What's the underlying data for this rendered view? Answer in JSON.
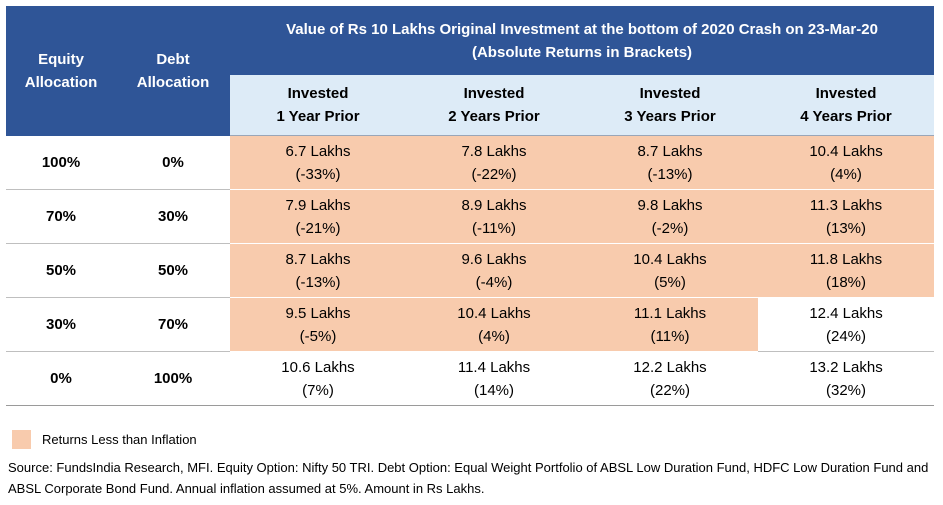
{
  "header": {
    "equity_allocation": "Equity Allocation",
    "debt_allocation": "Debt Allocation",
    "title_line1": "Value of Rs 10 Lakhs Original Investment at the bottom of 2020 Crash on 23-Mar-20",
    "title_line2": "(Absolute Returns in Brackets)",
    "columns": [
      {
        "line1": "Invested",
        "line2": "1 Year Prior"
      },
      {
        "line1": "Invested",
        "line2": "2 Years Prior"
      },
      {
        "line1": "Invested",
        "line2": "3 Years Prior"
      },
      {
        "line1": "Invested",
        "line2": "4 Years Prior"
      }
    ]
  },
  "rows": [
    {
      "equity": "100%",
      "debt": "0%",
      "cells": [
        {
          "value": "6.7 Lakhs",
          "ret": "(-33%)",
          "below_inflation": true
        },
        {
          "value": "7.8 Lakhs",
          "ret": "(-22%)",
          "below_inflation": true
        },
        {
          "value": "8.7 Lakhs",
          "ret": "(-13%)",
          "below_inflation": true
        },
        {
          "value": "10.4 Lakhs",
          "ret": "(4%)",
          "below_inflation": true
        }
      ]
    },
    {
      "equity": "70%",
      "debt": "30%",
      "cells": [
        {
          "value": "7.9 Lakhs",
          "ret": "(-21%)",
          "below_inflation": true
        },
        {
          "value": "8.9 Lakhs",
          "ret": "(-11%)",
          "below_inflation": true
        },
        {
          "value": "9.8 Lakhs",
          "ret": "(-2%)",
          "below_inflation": true
        },
        {
          "value": "11.3 Lakhs",
          "ret": "(13%)",
          "below_inflation": true
        }
      ]
    },
    {
      "equity": "50%",
      "debt": "50%",
      "cells": [
        {
          "value": "8.7 Lakhs",
          "ret": "(-13%)",
          "below_inflation": true
        },
        {
          "value": "9.6 Lakhs",
          "ret": "(-4%)",
          "below_inflation": true
        },
        {
          "value": "10.4 Lakhs",
          "ret": "(5%)",
          "below_inflation": true
        },
        {
          "value": "11.8 Lakhs",
          "ret": "(18%)",
          "below_inflation": true
        }
      ]
    },
    {
      "equity": "30%",
      "debt": "70%",
      "cells": [
        {
          "value": "9.5 Lakhs",
          "ret": "(-5%)",
          "below_inflation": true
        },
        {
          "value": "10.4 Lakhs",
          "ret": "(4%)",
          "below_inflation": true
        },
        {
          "value": "11.1 Lakhs",
          "ret": "(11%)",
          "below_inflation": true
        },
        {
          "value": "12.4 Lakhs",
          "ret": "(24%)",
          "below_inflation": false
        }
      ]
    },
    {
      "equity": "0%",
      "debt": "100%",
      "cells": [
        {
          "value": "10.6 Lakhs",
          "ret": "(7%)",
          "below_inflation": false
        },
        {
          "value": "11.4 Lakhs",
          "ret": "(14%)",
          "below_inflation": false
        },
        {
          "value": "12.2 Lakhs",
          "ret": "(22%)",
          "below_inflation": false
        },
        {
          "value": "13.2 Lakhs",
          "ret": "(32%)",
          "below_inflation": false
        }
      ]
    }
  ],
  "legend": {
    "label": "Returns Less than Inflation",
    "color": "#f8cbad"
  },
  "source": "Source: FundsIndia Research, MFI. Equity Option: Nifty 50 TRI. Debt Option: Equal Weight Portfolio of ABSL Low Duration Fund, HDFC Low Duration Fund and ABSL Corporate Bond Fund. Annual inflation assumed at 5%. Amount in Rs Lakhs."
}
